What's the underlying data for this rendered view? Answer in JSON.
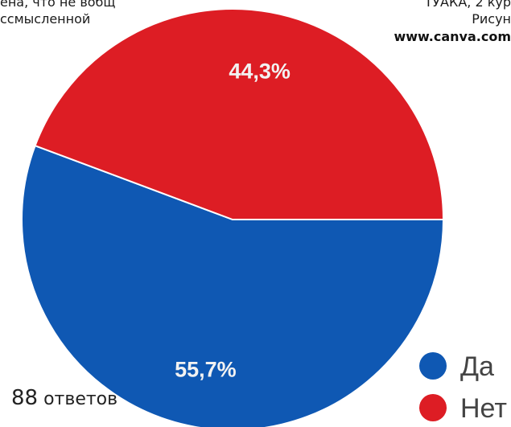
{
  "header": {
    "left_line1": "ена, что не вобщ",
    "left_line2": "ссмысленной",
    "right_line1": "ТУАКА, 2 кур",
    "right_line2": "Рисун",
    "right_url": "www.canva.com"
  },
  "footer": {
    "count": "88",
    "count_label": "ответов"
  },
  "chart_data": {
    "type": "pie",
    "title": "",
    "slices": [
      {
        "label": "Да",
        "value": 55.7,
        "display": "55,7%",
        "color": "#0f58b3"
      },
      {
        "label": "Нет",
        "value": 44.3,
        "display": "44,3%",
        "color": "#dd1d24"
      }
    ],
    "start_direction": "east",
    "direction": "clockwise",
    "legend": {
      "position": "bottom-right",
      "items": [
        "Да",
        "Нет"
      ]
    }
  }
}
